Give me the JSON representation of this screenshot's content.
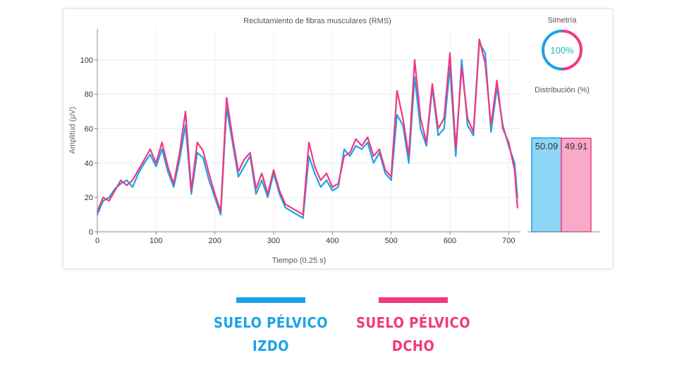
{
  "chart_data": [
    {
      "type": "line",
      "title": "Reclutamiento de fibras musculares (RMS)",
      "xlabel": "Tiempo (0.25 s)",
      "ylabel": "Amplitud (µV)",
      "xlim": [
        0,
        720
      ],
      "ylim": [
        0,
        118
      ],
      "xticks": [
        0,
        100,
        200,
        300,
        400,
        500,
        600,
        700
      ],
      "yticks": [
        0,
        20,
        40,
        60,
        80,
        100
      ],
      "grid": true,
      "series": [
        {
          "name": "Suelo pélvico izdo",
          "color": "#1aa3e8",
          "x": [
            0,
            10,
            20,
            30,
            40,
            50,
            60,
            70,
            80,
            90,
            100,
            110,
            120,
            130,
            140,
            150,
            160,
            170,
            180,
            190,
            200,
            210,
            220,
            230,
            240,
            250,
            260,
            270,
            280,
            290,
            300,
            310,
            320,
            330,
            340,
            350,
            360,
            370,
            380,
            390,
            400,
            410,
            420,
            430,
            440,
            450,
            460,
            470,
            480,
            490,
            500,
            510,
            520,
            530,
            540,
            550,
            560,
            570,
            580,
            590,
            600,
            610,
            620,
            630,
            640,
            650,
            660,
            670,
            680,
            690,
            700,
            710,
            715
          ],
          "values": [
            10,
            18,
            20,
            25,
            28,
            30,
            26,
            34,
            40,
            45,
            38,
            48,
            35,
            26,
            42,
            62,
            22,
            46,
            43,
            30,
            20,
            10,
            72,
            52,
            32,
            38,
            44,
            22,
            30,
            20,
            34,
            22,
            14,
            12,
            10,
            8,
            44,
            34,
            26,
            30,
            24,
            26,
            48,
            44,
            50,
            48,
            52,
            40,
            46,
            34,
            30,
            68,
            62,
            40,
            90,
            60,
            50,
            84,
            56,
            60,
            96,
            44,
            100,
            62,
            56,
            110,
            104,
            58,
            84,
            62,
            50,
            40,
            20
          ]
        },
        {
          "name": "Suelo pélvico dcho",
          "color": "#f2387f",
          "x": [
            0,
            10,
            20,
            30,
            40,
            50,
            60,
            70,
            80,
            90,
            100,
            110,
            120,
            130,
            140,
            150,
            160,
            170,
            180,
            190,
            200,
            210,
            220,
            230,
            240,
            250,
            260,
            270,
            280,
            290,
            300,
            310,
            320,
            330,
            340,
            350,
            360,
            370,
            380,
            390,
            400,
            410,
            420,
            430,
            440,
            450,
            460,
            470,
            480,
            490,
            500,
            510,
            520,
            530,
            540,
            550,
            560,
            570,
            580,
            590,
            600,
            610,
            620,
            630,
            640,
            650,
            660,
            670,
            680,
            690,
            700,
            710,
            715
          ],
          "values": [
            12,
            20,
            18,
            24,
            30,
            27,
            30,
            36,
            42,
            48,
            40,
            52,
            38,
            28,
            46,
            70,
            24,
            52,
            47,
            34,
            22,
            12,
            78,
            55,
            35,
            42,
            46,
            25,
            34,
            22,
            36,
            24,
            16,
            14,
            12,
            10,
            52,
            38,
            30,
            34,
            26,
            28,
            44,
            46,
            54,
            50,
            55,
            44,
            48,
            36,
            32,
            82,
            66,
            44,
            100,
            66,
            52,
            86,
            60,
            66,
            104,
            48,
            96,
            66,
            58,
            112,
            98,
            62,
            88,
            60,
            52,
            36,
            14
          ]
        },
        {
          "type": "bar",
          "title": "Distribución (%)",
          "categories": [
            "Izdo",
            "Dcho"
          ],
          "values": [
            50.09,
            49.91
          ],
          "value_labels": [
            "50.09",
            "49.91"
          ],
          "colors": [
            "#8fd5f5",
            "#f9aac8"
          ],
          "ylim": [
            0,
            100
          ]
        }
      ]
    },
    {
      "type": "gauge",
      "title": "Simetría",
      "value": 100,
      "label": "100%"
    }
  ],
  "legend": [
    {
      "line1": "SUELO PÉLVICO",
      "line2": "IZDO",
      "color": "#1aa3e8"
    },
    {
      "line1": "SUELO PÉLVICO",
      "line2": "DCHO",
      "color": "#f2387f"
    }
  ]
}
